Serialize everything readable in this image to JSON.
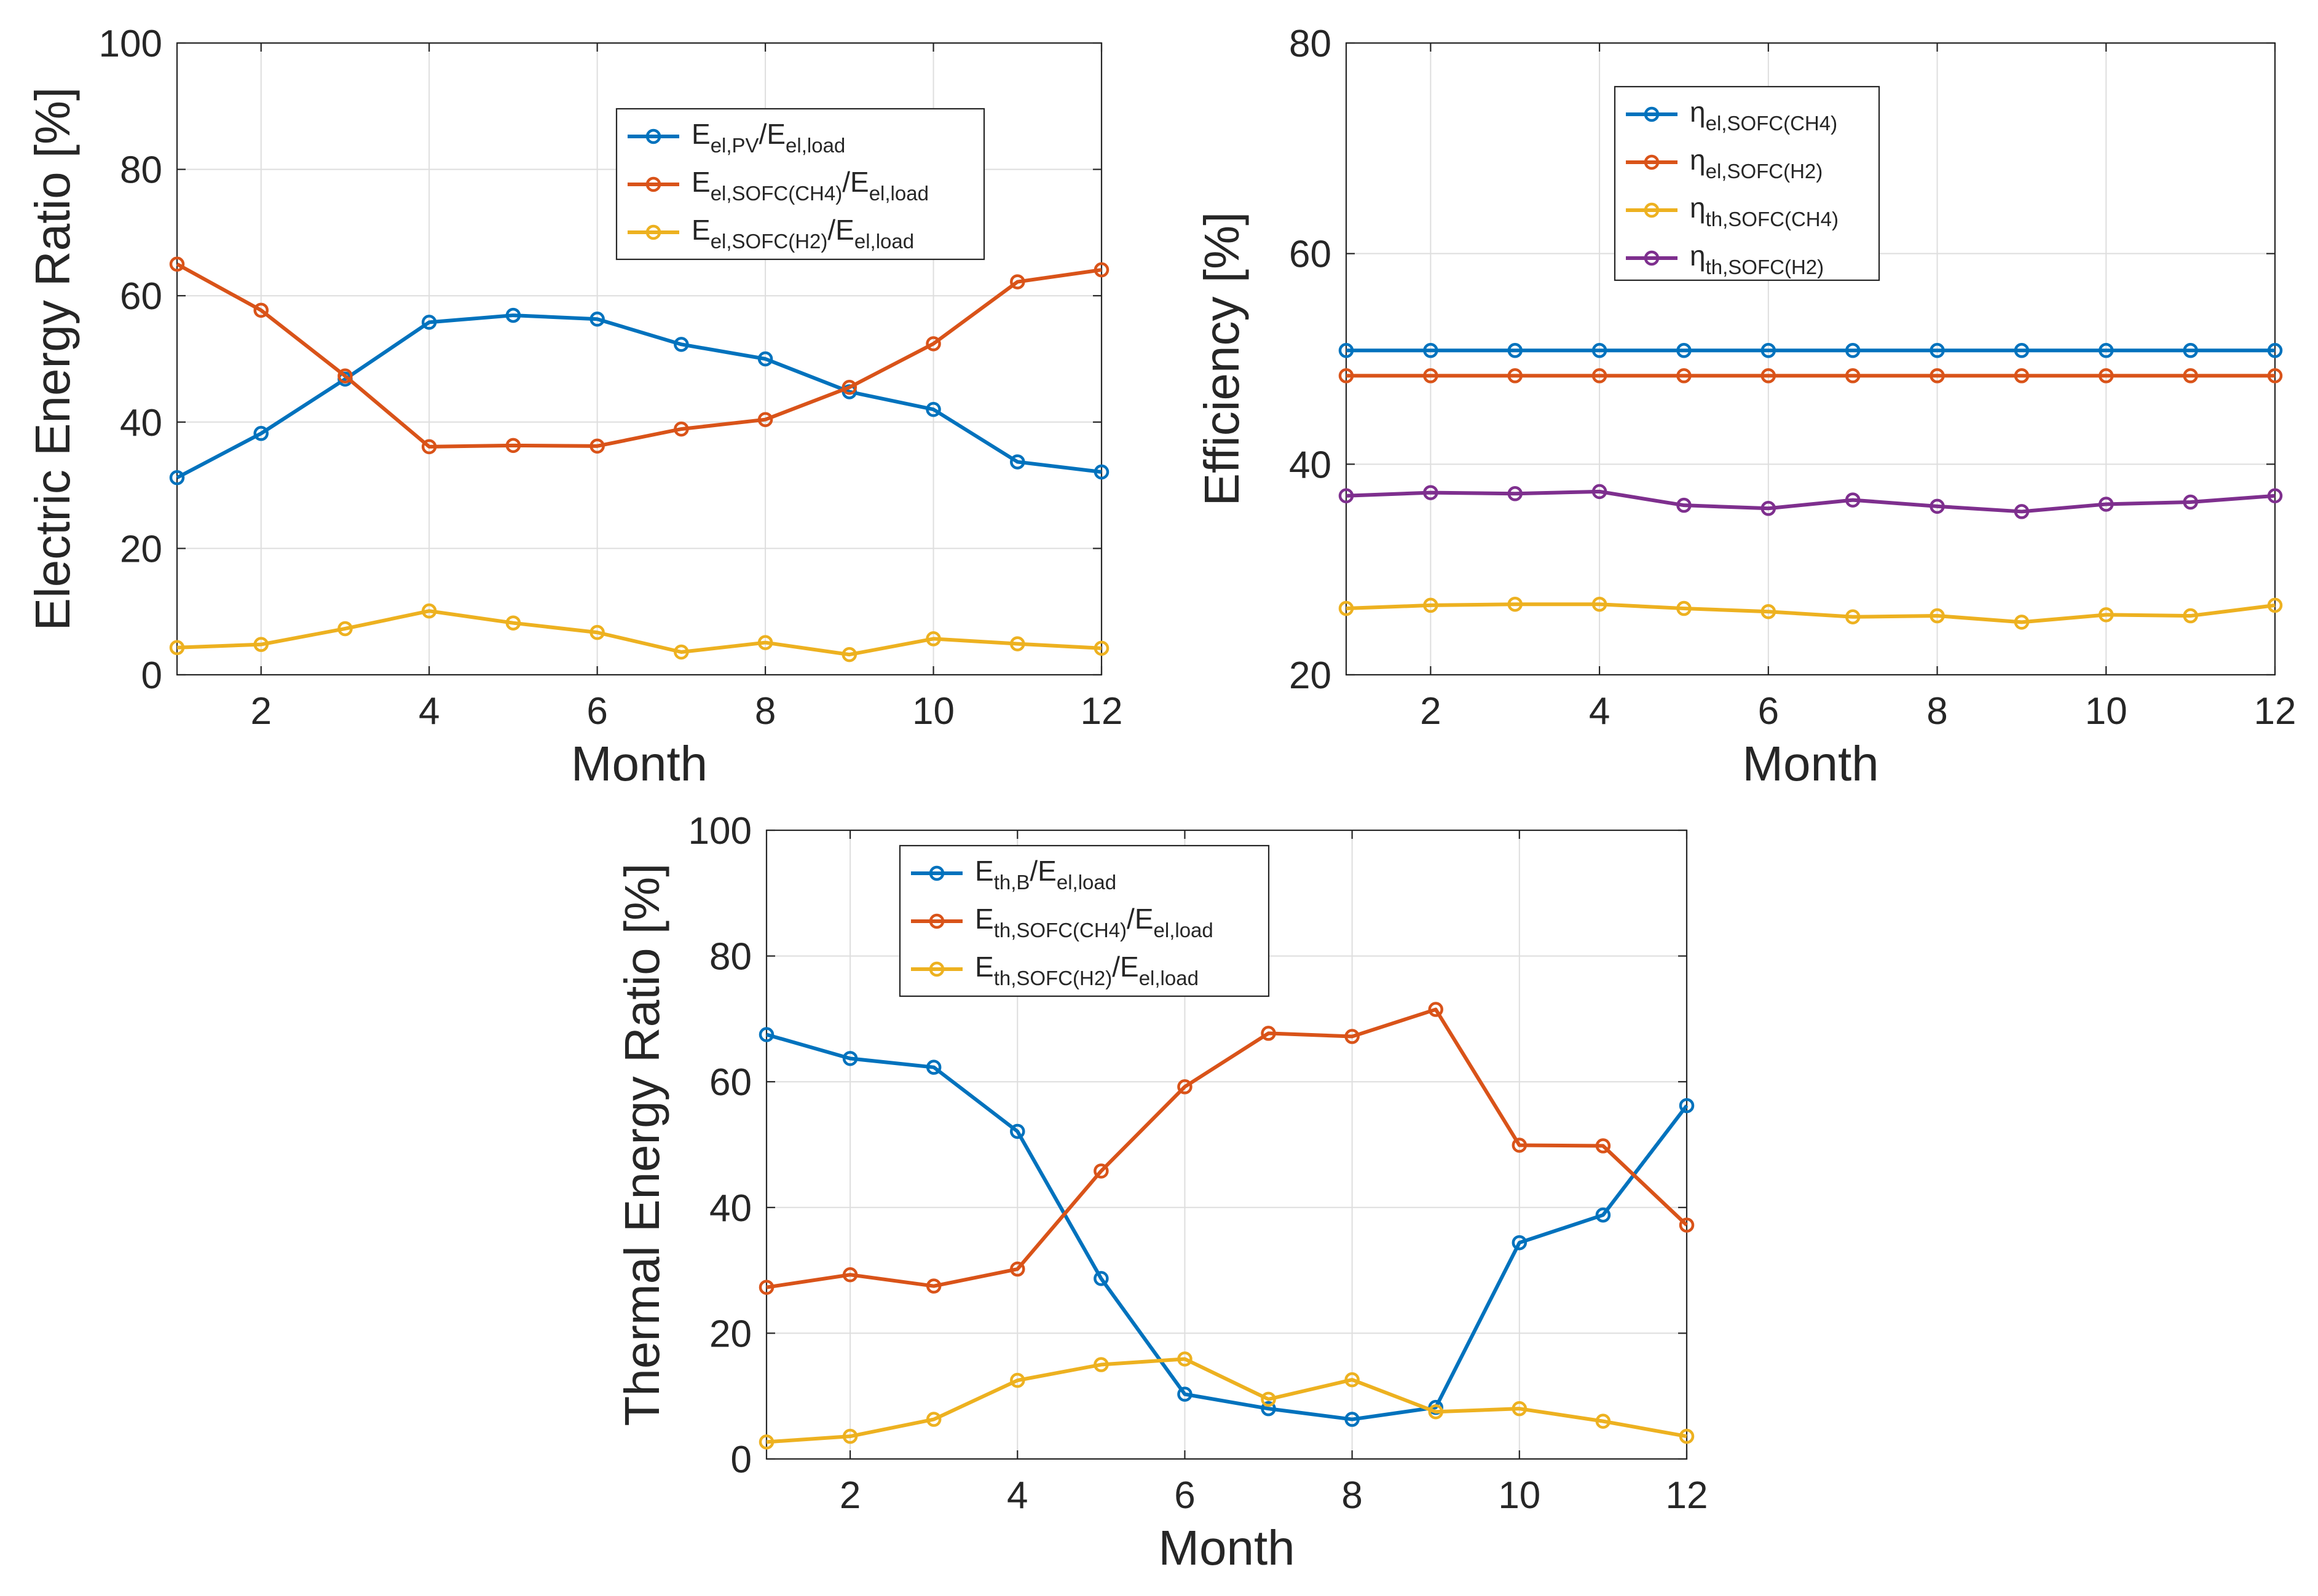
{
  "colors": {
    "blue": "#0072BD",
    "orange": "#D95319",
    "yellow": "#EDB120",
    "purple": "#7E2F8E"
  },
  "chart_data": [
    {
      "name": "electric",
      "type": "line",
      "xlabel": "Month",
      "ylabel": "Electric Energy Ratio [%]",
      "xlim": [
        1,
        12
      ],
      "ylim": [
        0,
        100
      ],
      "xticks": [
        "2",
        "4",
        "6",
        "8",
        "10",
        "12"
      ],
      "yticks": [
        "0",
        "20",
        "40",
        "60",
        "80",
        "100"
      ],
      "x": [
        1,
        2,
        3,
        4,
        5,
        6,
        7,
        8,
        9,
        10,
        11,
        12
      ],
      "legend_position": "top-center",
      "series": [
        {
          "color": "blue",
          "label": {
            "main": "E",
            "sub": "el,PV",
            "main2": "/E",
            "sub2": "el,load"
          },
          "values": [
            31.2,
            38.2,
            46.8,
            55.8,
            56.9,
            56.3,
            52.3,
            50.0,
            44.8,
            42.0,
            33.7,
            32.1
          ]
        },
        {
          "color": "orange",
          "label": {
            "main": "E",
            "sub": "el,SOFC(CH4)",
            "main2": "/E",
            "sub2": "el,load"
          },
          "values": [
            65.0,
            57.7,
            47.3,
            36.1,
            36.3,
            36.2,
            38.9,
            40.4,
            45.5,
            52.4,
            62.2,
            64.1
          ]
        },
        {
          "color": "yellow",
          "label": {
            "main": "E",
            "sub": "el,SOFC(H2)",
            "main2": "/E",
            "sub2": "el,load"
          },
          "values": [
            4.3,
            4.8,
            7.3,
            10.1,
            8.2,
            6.7,
            3.6,
            5.1,
            3.2,
            5.7,
            4.9,
            4.2
          ]
        }
      ]
    },
    {
      "name": "efficiency",
      "type": "line",
      "xlabel": "Month",
      "ylabel": "Efficiency [%]",
      "xlim": [
        1,
        12
      ],
      "ylim": [
        20,
        80
      ],
      "xticks": [
        "2",
        "4",
        "6",
        "8",
        "10",
        "12"
      ],
      "yticks": [
        "20",
        "40",
        "60",
        "80"
      ],
      "x": [
        1,
        2,
        3,
        4,
        5,
        6,
        7,
        8,
        9,
        10,
        11,
        12
      ],
      "legend_position": "top-left",
      "series": [
        {
          "color": "blue",
          "label": {
            "main": "η",
            "sub": "el,SOFC(CH4)",
            "main2": "",
            "sub2": ""
          },
          "values": [
            50.8,
            50.8,
            50.8,
            50.8,
            50.8,
            50.8,
            50.8,
            50.8,
            50.8,
            50.8,
            50.8,
            50.8
          ]
        },
        {
          "color": "orange",
          "label": {
            "main": "η",
            "sub": "el,SOFC(H2)",
            "main2": "",
            "sub2": ""
          },
          "values": [
            48.4,
            48.4,
            48.4,
            48.4,
            48.4,
            48.4,
            48.4,
            48.4,
            48.4,
            48.4,
            48.4,
            48.4
          ]
        },
        {
          "color": "yellow",
          "label": {
            "main": "η",
            "sub": "th,SOFC(CH4)",
            "main2": "",
            "sub2": ""
          },
          "values": [
            26.3,
            26.6,
            26.7,
            26.7,
            26.3,
            26.0,
            25.5,
            25.6,
            25.0,
            25.7,
            25.6,
            26.6
          ]
        },
        {
          "color": "purple",
          "label": {
            "main": "η",
            "sub": "th,SOFC(H2)",
            "main2": "",
            "sub2": ""
          },
          "values": [
            37.0,
            37.3,
            37.2,
            37.4,
            36.1,
            35.8,
            36.6,
            36.0,
            35.5,
            36.2,
            36.4,
            37.0
          ]
        }
      ]
    },
    {
      "name": "thermal",
      "type": "line",
      "xlabel": "Month",
      "ylabel": "Thermal Energy Ratio [%]",
      "xlim": [
        1,
        12
      ],
      "ylim": [
        0,
        100
      ],
      "xticks": [
        "2",
        "4",
        "6",
        "8",
        "10",
        "12"
      ],
      "yticks": [
        "0",
        "20",
        "40",
        "60",
        "80",
        "100"
      ],
      "x": [
        1,
        2,
        3,
        4,
        5,
        6,
        7,
        8,
        9,
        10,
        11,
        12
      ],
      "legend_position": "top-left",
      "series": [
        {
          "color": "blue",
          "label": {
            "main": "E",
            "sub": "th,B",
            "main2": "/E",
            "sub2": "el,load"
          },
          "values": [
            67.5,
            63.7,
            62.3,
            52.1,
            28.7,
            10.3,
            8.0,
            6.3,
            8.2,
            34.4,
            38.8,
            56.2
          ]
        },
        {
          "color": "orange",
          "label": {
            "main": "E",
            "sub": "th,SOFC(CH4)",
            "main2": "/E",
            "sub2": "el,load"
          },
          "values": [
            27.3,
            29.3,
            27.5,
            30.2,
            45.8,
            59.2,
            67.7,
            67.2,
            71.5,
            49.9,
            49.8,
            37.2
          ]
        },
        {
          "color": "yellow",
          "label": {
            "main": "E",
            "sub": "th,SOFC(H2)",
            "main2": "/E",
            "sub2": "el,load"
          },
          "values": [
            2.7,
            3.6,
            6.3,
            12.5,
            15.0,
            15.9,
            9.5,
            12.6,
            7.5,
            8.0,
            6.0,
            3.6
          ]
        }
      ]
    }
  ]
}
